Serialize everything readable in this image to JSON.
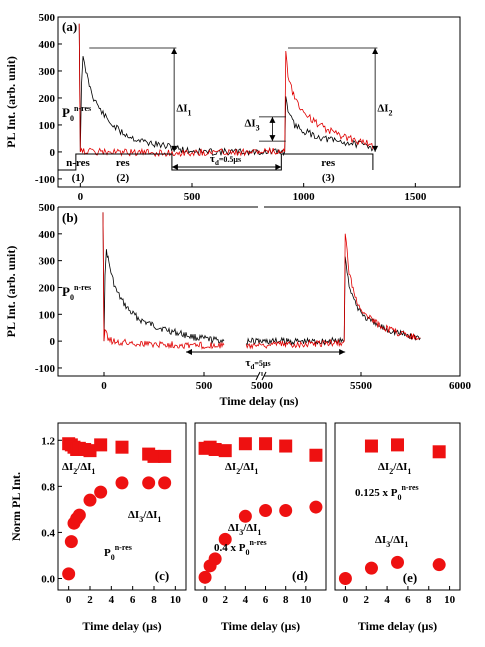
{
  "chart_data": [
    {
      "panel": "a",
      "type": "line",
      "panel_label": "(a)",
      "xlabel": "",
      "ylabel": "PL Int. (arb. unit)",
      "xlim": [
        -100,
        1700
      ],
      "ylim": [
        -130,
        500
      ],
      "xticks": [
        "0",
        "500",
        "1000",
        "1500"
      ],
      "yticks": [
        "-100",
        "0",
        "100",
        "200",
        "300",
        "400",
        "500"
      ],
      "series_colors": [
        "#000000",
        "#e00000"
      ],
      "series": [
        {
          "points": [
            [
              -5,
              475
            ],
            [
              0,
              0
            ],
            [
              5,
              250
            ],
            [
              12,
              345
            ],
            [
              25,
              300
            ],
            [
              40,
              250
            ],
            [
              60,
              200
            ],
            [
              90,
              155
            ],
            [
              130,
              110
            ],
            [
              180,
              75
            ],
            [
              240,
              50
            ],
            [
              300,
              35
            ],
            [
              360,
              25
            ],
            [
              420,
              15
            ],
            [
              480,
              5
            ],
            [
              560,
              0
            ],
            [
              700,
              0
            ],
            [
              870,
              0
            ],
            [
              900,
              0
            ],
            [
              915,
              0
            ],
            [
              920,
              210
            ],
            [
              935,
              135
            ],
            [
              960,
              100
            ],
            [
              1000,
              78
            ],
            [
              1050,
              60
            ],
            [
              1100,
              48
            ],
            [
              1160,
              38
            ],
            [
              1230,
              30
            ],
            [
              1300,
              22
            ],
            [
              1310,
              10
            ]
          ]
        },
        {
          "points": [
            [
              -5,
              475
            ],
            [
              0,
              0
            ],
            [
              5,
              15
            ],
            [
              20,
              2
            ],
            [
              60,
              0
            ],
            [
              200,
              -2
            ],
            [
              400,
              -4
            ],
            [
              600,
              0
            ],
            [
              800,
              0
            ],
            [
              900,
              2
            ],
            [
              915,
              0
            ],
            [
              920,
              385
            ],
            [
              930,
              290
            ],
            [
              950,
              225
            ],
            [
              975,
              175
            ],
            [
              1000,
              150
            ],
            [
              1050,
              110
            ],
            [
              1100,
              85
            ],
            [
              1150,
              65
            ],
            [
              1200,
              50
            ],
            [
              1260,
              38
            ],
            [
              1300,
              28
            ],
            [
              1310,
              10
            ]
          ]
        }
      ],
      "annotations": [
        "P0^n-res",
        "ΔI1",
        "ΔI2",
        "ΔI3",
        "τd=0.5μs"
      ],
      "regions": [
        "n-res",
        "(1)",
        "res",
        "(2)",
        "res",
        "(3)"
      ]
    },
    {
      "panel": "b",
      "type": "line",
      "panel_label": "(b)",
      "xlabel": "Time delay (ns)",
      "ylabel": "PL Int. (arb. unit)",
      "ylim": [
        -130,
        500
      ],
      "xticks": [
        "0",
        "500",
        "5000",
        "5500",
        "6000"
      ],
      "yticks": [
        "-100",
        "0",
        "100",
        "200",
        "300",
        "400",
        "500"
      ],
      "series_colors": [
        "#000000",
        "#e00000"
      ],
      "series": [
        {
          "points": [
            [
              -5,
              480
            ],
            [
              0,
              0
            ],
            [
              5,
              245
            ],
            [
              12,
              340
            ],
            [
              25,
              290
            ],
            [
              40,
              240
            ],
            [
              60,
              190
            ],
            [
              90,
              150
            ],
            [
              130,
              110
            ],
            [
              180,
              80
            ],
            [
              240,
              60
            ],
            [
              300,
              45
            ],
            [
              360,
              32
            ],
            [
              400,
              25
            ],
            [
              450,
              15
            ],
            [
              500,
              8
            ],
            [
              600,
              0
            ],
            [
              4920,
              0
            ],
            [
              5150,
              0
            ],
            [
              5300,
              0
            ],
            [
              5400,
              0
            ],
            [
              5415,
              0
            ],
            [
              5420,
              320
            ],
            [
              5440,
              210
            ],
            [
              5470,
              140
            ],
            [
              5520,
              90
            ],
            [
              5580,
              60
            ],
            [
              5650,
              40
            ],
            [
              5720,
              25
            ],
            [
              5800,
              12
            ]
          ]
        },
        {
          "points": [
            [
              -5,
              480
            ],
            [
              0,
              0
            ],
            [
              5,
              40
            ],
            [
              25,
              5
            ],
            [
              80,
              -5
            ],
            [
              200,
              -10
            ],
            [
              400,
              -15
            ],
            [
              600,
              -15
            ],
            [
              4920,
              -15
            ],
            [
              5200,
              -10
            ],
            [
              5410,
              -5
            ],
            [
              5415,
              0
            ],
            [
              5420,
              405
            ],
            [
              5440,
              260
            ],
            [
              5470,
              160
            ],
            [
              5520,
              100
            ],
            [
              5580,
              65
            ],
            [
              5650,
              40
            ],
            [
              5720,
              25
            ],
            [
              5800,
              12
            ]
          ]
        }
      ],
      "annotations": [
        "P0^n-res",
        "τd=5μs"
      ]
    },
    {
      "panel": "c",
      "type": "scatter",
      "panel_label": "(c)",
      "xlabel": "Time delay (μs)",
      "ylabel": "Norm PL Int.",
      "xlim": [
        -1,
        11
      ],
      "ylim": [
        -0.1,
        1.35
      ],
      "xticks": [
        "0",
        "2",
        "4",
        "6",
        "8",
        "10"
      ],
      "yticks": [
        "0.0",
        "0.4",
        "0.8",
        "1.2"
      ],
      "series": [
        {
          "name": "ΔI2/ΔI1",
          "marker": "square",
          "x": [
            0.0,
            0.25,
            0.5,
            0.75,
            1.0,
            1.5,
            2.0,
            3.0,
            5.0,
            7.5,
            8.0,
            9.0
          ],
          "y": [
            1.17,
            1.16,
            1.14,
            1.12,
            1.13,
            1.12,
            1.11,
            1.16,
            1.14,
            1.08,
            1.06,
            1.06
          ]
        },
        {
          "name": "ΔI3/ΔI1",
          "marker": "circle",
          "x": [
            0.0,
            0.25,
            0.5,
            0.75,
            1.0,
            2.0,
            3.0,
            5.0,
            7.5,
            9.0
          ],
          "y": [
            0.04,
            0.32,
            0.48,
            0.52,
            0.55,
            0.68,
            0.75,
            0.83,
            0.83,
            0.83
          ]
        }
      ],
      "annotations": [
        "P0^n-res"
      ]
    },
    {
      "panel": "d",
      "type": "scatter",
      "panel_label": "(d)",
      "xlabel": "Time delay (μs)",
      "ylabel": "",
      "xlim": [
        -1,
        12
      ],
      "ylim": [
        -0.1,
        1.35
      ],
      "xticks": [
        "0",
        "2",
        "4",
        "6",
        "8",
        "10"
      ],
      "yticks": [],
      "series": [
        {
          "name": "ΔI2/ΔI1",
          "marker": "square",
          "x": [
            0.0,
            0.5,
            1.0,
            2.0,
            4.0,
            6.0,
            8.0,
            11.0
          ],
          "y": [
            1.13,
            1.14,
            1.12,
            1.11,
            1.17,
            1.17,
            1.15,
            1.07
          ]
        },
        {
          "name": "ΔI3/ΔI1",
          "marker": "circle",
          "x": [
            0.0,
            0.5,
            1.0,
            2.0,
            4.0,
            6.0,
            8.0,
            11.0
          ],
          "y": [
            0.01,
            0.11,
            0.17,
            0.34,
            0.54,
            0.59,
            0.59,
            0.62
          ]
        }
      ],
      "annotations": [
        "0.4 x P0^n-res"
      ]
    },
    {
      "panel": "e",
      "type": "scatter",
      "panel_label": "(e)",
      "xlabel": "Time delay (μs)",
      "ylabel": "",
      "xlim": [
        -1,
        11
      ],
      "ylim": [
        -0.1,
        1.35
      ],
      "xticks": [
        "0",
        "2",
        "4",
        "6",
        "8",
        "10"
      ],
      "yticks": [],
      "series": [
        {
          "name": "ΔI2/ΔI1",
          "marker": "square",
          "x": [
            2.5,
            5.0,
            9.0
          ],
          "y": [
            1.15,
            1.16,
            1.1
          ]
        },
        {
          "name": "ΔI3/ΔI1",
          "marker": "circle",
          "x": [
            0.0,
            2.5,
            5.0,
            9.0
          ],
          "y": [
            0.0,
            0.09,
            0.14,
            0.12
          ]
        }
      ],
      "annotations": [
        "0.125 x P0^n-res"
      ]
    }
  ]
}
